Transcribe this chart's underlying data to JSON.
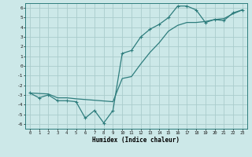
{
  "xlabel": "Humidex (Indice chaleur)",
  "xlim": [
    -0.5,
    23.5
  ],
  "ylim": [
    -6.5,
    6.5
  ],
  "xticks": [
    0,
    1,
    2,
    3,
    4,
    5,
    6,
    7,
    8,
    9,
    10,
    11,
    12,
    13,
    14,
    15,
    16,
    17,
    18,
    19,
    20,
    21,
    22,
    23
  ],
  "yticks": [
    -6,
    -5,
    -4,
    -3,
    -2,
    -1,
    0,
    1,
    2,
    3,
    4,
    5,
    6
  ],
  "background_color": "#cce8e8",
  "grid_color": "#aacccc",
  "line_color": "#2e7d7d",
  "line1_x": [
    0,
    1,
    2,
    3,
    4,
    5,
    6,
    7,
    8,
    9,
    10,
    11,
    12,
    13,
    14,
    15,
    16,
    17,
    18,
    19,
    20,
    21,
    22,
    23
  ],
  "line1_y": [
    -2.8,
    -3.3,
    -3.0,
    -3.6,
    -3.6,
    -3.7,
    -5.4,
    -4.6,
    -5.9,
    -4.6,
    1.3,
    1.6,
    3.0,
    3.8,
    4.3,
    5.0,
    6.2,
    6.2,
    5.8,
    4.5,
    4.8,
    4.7,
    5.5,
    5.8
  ],
  "line2_x": [
    0,
    2,
    3,
    4,
    5,
    9,
    10,
    11,
    12,
    13,
    14,
    15,
    16,
    17,
    18,
    19,
    20,
    21,
    22,
    23
  ],
  "line2_y": [
    -2.8,
    -2.9,
    -3.3,
    -3.3,
    -3.4,
    -3.7,
    -1.3,
    -1.1,
    0.2,
    1.4,
    2.4,
    3.6,
    4.2,
    4.5,
    4.5,
    4.6,
    4.8,
    4.9,
    5.4,
    5.8
  ]
}
